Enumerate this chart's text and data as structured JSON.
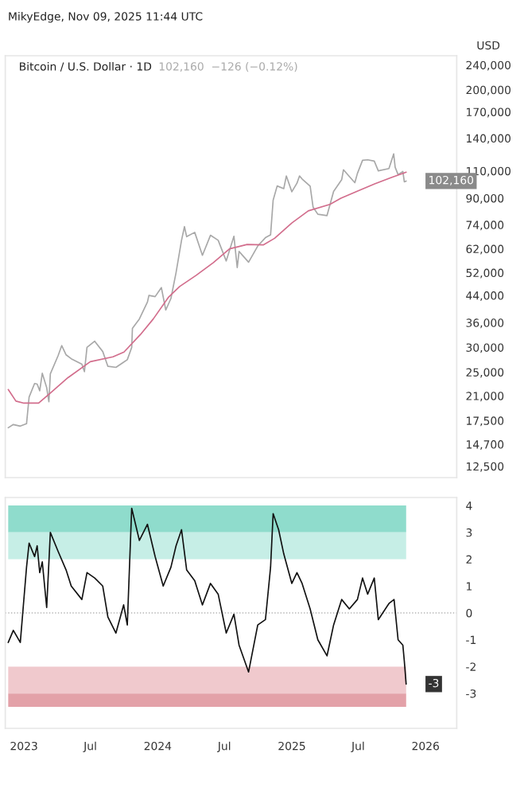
{
  "chart_data": [
    {
      "type": "line",
      "title": "Bitcoin / U.S. Dollar · 1D",
      "subtitle": "102,160  −126 (−0.12%)",
      "ylabel": "USD",
      "log": true,
      "annotations": [
        "MikyEdge, Nov 09, 2025 11:44 UTC",
        {
          "text": "102,160",
          "x": "2025-11-09",
          "y": 102160
        }
      ],
      "xlim": [
        "2022-11-11",
        "2026-03-27"
      ],
      "ylim": [
        11500,
        257000
      ],
      "yticks": [
        {
          "value": 12500,
          "label": "12,500"
        },
        {
          "value": 14700,
          "label": "14,700"
        },
        {
          "value": 17500,
          "label": "17,500"
        },
        {
          "value": 21000,
          "label": "21,000"
        },
        {
          "value": 25000,
          "label": "25,000"
        },
        {
          "value": 30000,
          "label": "30,000"
        },
        {
          "value": 36000,
          "label": "36,000"
        },
        {
          "value": 44000,
          "label": "44,000"
        },
        {
          "value": 52000,
          "label": "52,000"
        },
        {
          "value": 62000,
          "label": "62,000"
        },
        {
          "value": 74000,
          "label": "74,000"
        },
        {
          "value": 90000,
          "label": "90,000"
        },
        {
          "value": 110000,
          "label": "110,000"
        },
        {
          "value": 140000,
          "label": "140,000"
        },
        {
          "value": 170000,
          "label": "170,000"
        },
        {
          "value": 200000,
          "label": "200,000"
        },
        {
          "value": 240000,
          "label": "240,000"
        }
      ],
      "series": [
        {
          "color": "#a8a8a8",
          "x": [
            "2022-11-19",
            "2022-12-03",
            "2022-12-22",
            "2023-01-08",
            "2023-01-15",
            "2023-01-30",
            "2023-02-06",
            "2023-02-13",
            "2023-02-20",
            "2023-03-04",
            "2023-03-10",
            "2023-03-14",
            "2023-04-04",
            "2023-04-14",
            "2023-04-26",
            "2023-05-10",
            "2023-06-08",
            "2023-06-15",
            "2023-06-22",
            "2023-07-13",
            "2023-08-04",
            "2023-08-18",
            "2023-09-09",
            "2023-09-30",
            "2023-10-10",
            "2023-10-22",
            "2023-10-24",
            "2023-11-12",
            "2023-12-04",
            "2023-12-08",
            "2023-12-25",
            "2024-01-11",
            "2024-01-23",
            "2024-02-06",
            "2024-02-20",
            "2024-03-06",
            "2024-03-14",
            "2024-03-20",
            "2024-04-11",
            "2024-05-02",
            "2024-05-24",
            "2024-06-14",
            "2024-07-06",
            "2024-07-27",
            "2024-08-05",
            "2024-08-10",
            "2024-09-05",
            "2024-09-30",
            "2024-10-21",
            "2024-11-04",
            "2024-11-11",
            "2024-11-22",
            "2024-12-10",
            "2024-12-17",
            "2025-01-01",
            "2025-01-15",
            "2025-01-22",
            "2025-01-29",
            "2025-02-20",
            "2025-02-28",
            "2025-03-13",
            "2025-04-07",
            "2025-04-25",
            "2025-05-17",
            "2025-05-22",
            "2025-06-07",
            "2025-06-22",
            "2025-06-29",
            "2025-07-13",
            "2025-07-27",
            "2025-08-14",
            "2025-08-25",
            "2025-09-23",
            "2025-10-06",
            "2025-10-10",
            "2025-10-18",
            "2025-10-31",
            "2025-11-04",
            "2025-11-09"
          ],
          "values": [
            16600,
            17000,
            16800,
            17100,
            20800,
            23000,
            22900,
            21800,
            24800,
            22300,
            20100,
            24700,
            28200,
            30400,
            28400,
            27600,
            26500,
            25100,
            30000,
            31400,
            29100,
            26100,
            25900,
            26900,
            27400,
            30000,
            34500,
            37000,
            41900,
            44000,
            43600,
            46600,
            39500,
            43000,
            52000,
            66000,
            73000,
            67800,
            70000,
            59100,
            68500,
            66000,
            56700,
            68000,
            54000,
            60800,
            56200,
            63300,
            67300,
            68700,
            88700,
            98500,
            96600,
            106000,
            94400,
            100500,
            106000,
            103700,
            98300,
            84300,
            80000,
            79200,
            94600,
            103100,
            111000,
            105600,
            100900,
            108000,
            119000,
            119400,
            118300,
            110100,
            112000,
            124700,
            113000,
            107100,
            109600,
            101500,
            102160
          ]
        },
        {
          "color": "#d26d8c",
          "x": [
            "2022-11-19",
            "2022-12-10",
            "2023-01-01",
            "2023-02-10",
            "2023-03-15",
            "2023-05-01",
            "2023-07-01",
            "2023-09-01",
            "2023-10-01",
            "2023-11-15",
            "2023-12-20",
            "2024-01-31",
            "2024-03-01",
            "2024-04-15",
            "2024-06-01",
            "2024-07-15",
            "2024-09-01",
            "2024-10-15",
            "2024-11-15",
            "2025-01-01",
            "2025-02-15",
            "2025-04-15",
            "2025-05-15",
            "2025-07-01",
            "2025-08-15",
            "2025-10-01",
            "2025-11-09"
          ],
          "values": [
            22000,
            20200,
            19900,
            19900,
            21500,
            24000,
            27000,
            28000,
            29000,
            33000,
            37000,
            43500,
            47000,
            51000,
            56000,
            62000,
            64000,
            63800,
            67000,
            75000,
            82000,
            86000,
            90000,
            95000,
            100000,
            105000,
            109000
          ]
        }
      ]
    },
    {
      "type": "line",
      "annotations": [
        {
          "text": "-3",
          "x": "2025-11-09",
          "y": -2.65
        }
      ],
      "xlim": [
        "2022-11-11",
        "2026-03-27"
      ],
      "ylim": [
        -4.3,
        4.3
      ],
      "xticks": [
        {
          "value": "2023-01-01",
          "label": "2023"
        },
        {
          "value": "2023-07-01",
          "label": "Jul"
        },
        {
          "value": "2024-01-01",
          "label": "2024"
        },
        {
          "value": "2024-07-01",
          "label": "Jul"
        },
        {
          "value": "2025-01-01",
          "label": "2025"
        },
        {
          "value": "2025-07-01",
          "label": "Jul"
        },
        {
          "value": "2026-01-01",
          "label": "2026"
        }
      ],
      "yticks": [
        -3,
        -2,
        -1,
        0,
        1,
        2,
        3,
        4
      ],
      "bands": [
        {
          "axis": "y",
          "from": 3,
          "to": 4,
          "color": "#8fdccc"
        },
        {
          "axis": "y",
          "from": 2,
          "to": 3,
          "color": "#c6eee6"
        },
        {
          "axis": "y",
          "from": -3,
          "to": -2,
          "color": "#f0c9cd"
        },
        {
          "axis": "y",
          "from": -3.5,
          "to": -3,
          "color": "#e3a1a8"
        }
      ],
      "ref_lines": [
        {
          "axis": "y",
          "value": 0,
          "color": "#b4b4b4",
          "line_style": "dotted"
        }
      ],
      "series": [
        {
          "color": "#111111",
          "x": [
            "2022-11-19",
            "2022-12-03",
            "2022-12-22",
            "2023-01-08",
            "2023-01-15",
            "2023-01-30",
            "2023-02-06",
            "2023-02-13",
            "2023-02-20",
            "2023-03-04",
            "2023-03-14",
            "2023-04-04",
            "2023-04-26",
            "2023-05-10",
            "2023-06-08",
            "2023-06-22",
            "2023-07-13",
            "2023-08-04",
            "2023-08-18",
            "2023-09-09",
            "2023-09-30",
            "2023-10-10",
            "2023-10-22",
            "2023-11-12",
            "2023-12-04",
            "2023-12-25",
            "2024-01-16",
            "2024-02-06",
            "2024-02-20",
            "2024-03-06",
            "2024-03-20",
            "2024-04-11",
            "2024-05-02",
            "2024-05-24",
            "2024-06-14",
            "2024-07-06",
            "2024-07-27",
            "2024-08-10",
            "2024-09-05",
            "2024-09-30",
            "2024-10-21",
            "2024-11-04",
            "2024-11-11",
            "2024-11-26",
            "2024-12-10",
            "2025-01-01",
            "2025-01-15",
            "2025-01-29",
            "2025-02-20",
            "2025-03-13",
            "2025-04-07",
            "2025-04-25",
            "2025-05-17",
            "2025-06-07",
            "2025-06-29",
            "2025-07-13",
            "2025-07-27",
            "2025-08-14",
            "2025-08-25",
            "2025-09-23",
            "2025-10-07",
            "2025-10-18",
            "2025-10-31",
            "2025-11-04",
            "2025-11-09"
          ],
          "values": [
            -1.1,
            -0.65,
            -1.1,
            1.7,
            2.6,
            2.1,
            2.5,
            1.5,
            1.9,
            0.2,
            3.0,
            2.3,
            1.6,
            1.0,
            0.5,
            1.5,
            1.3,
            1.0,
            -0.15,
            -0.75,
            0.3,
            -0.45,
            3.9,
            2.7,
            3.3,
            2.1,
            1.0,
            1.7,
            2.5,
            3.1,
            1.6,
            1.2,
            0.3,
            1.1,
            0.7,
            -0.75,
            -0.05,
            -1.2,
            -2.2,
            -0.45,
            -0.25,
            1.7,
            3.7,
            3.1,
            2.2,
            1.1,
            1.5,
            1.1,
            0.15,
            -1.0,
            -1.6,
            -0.45,
            0.5,
            0.15,
            0.5,
            1.3,
            0.7,
            1.3,
            -0.25,
            0.35,
            0.5,
            -1.0,
            -1.2,
            -1.8,
            -2.65
          ]
        }
      ]
    }
  ]
}
